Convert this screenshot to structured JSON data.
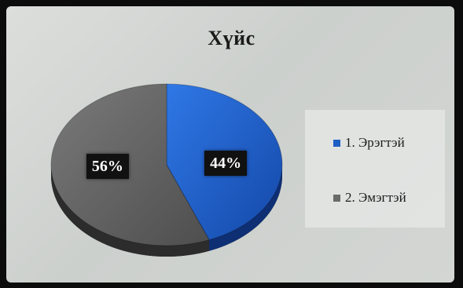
{
  "chart_data": {
    "type": "pie",
    "title": "Хүйс",
    "labels": [
      "1. Эрэгтэй",
      "2. Эмэгтэй"
    ],
    "values": [
      44,
      56
    ],
    "data_labels": [
      "44%",
      "56%"
    ],
    "colors": [
      "#1f5fc4",
      "#6a6a6a"
    ],
    "legend_position": "right"
  }
}
